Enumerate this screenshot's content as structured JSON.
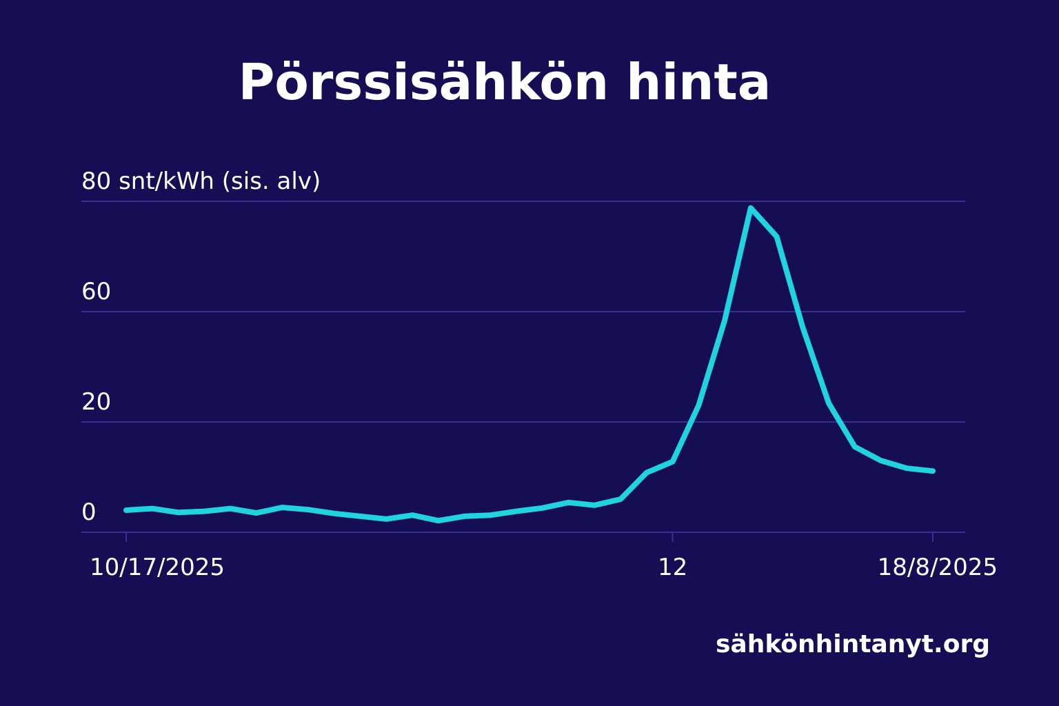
{
  "chart_data": {
    "type": "line",
    "title": "Pörssisähkön hinta",
    "source": "sähkönhintanyt.org",
    "categories": [
      "10/17/2025",
      null,
      null,
      null,
      null,
      null,
      null,
      null,
      null,
      null,
      null,
      null,
      null,
      null,
      null,
      null,
      null,
      null,
      null,
      null,
      null,
      "12",
      null,
      null,
      null,
      null,
      null,
      null,
      null,
      null,
      null,
      "18/8/2025"
    ],
    "series": [
      {
        "name": "Pörssisähkön hinta",
        "color": "#1fd3e0",
        "values": [
          4,
          4.3,
          3.6,
          3.8,
          4.3,
          3.5,
          4.5,
          4.1,
          3.4,
          2.9,
          2.4,
          3.1,
          2.1,
          2.9,
          3.1,
          3.8,
          4.4,
          5.4,
          4.9,
          6,
          10.8,
          12.8,
          26,
          56.8,
          78.8,
          73.6,
          54.3,
          26.8,
          15.5,
          13,
          11.6,
          11.1
        ]
      }
    ],
    "ylim": [
      0,
      80
    ],
    "yticks": [
      0,
      20,
      60,
      {
        "value": 80,
        "label": "80 snt/kWh (sis. alv)"
      }
    ],
    "grid": true
  }
}
